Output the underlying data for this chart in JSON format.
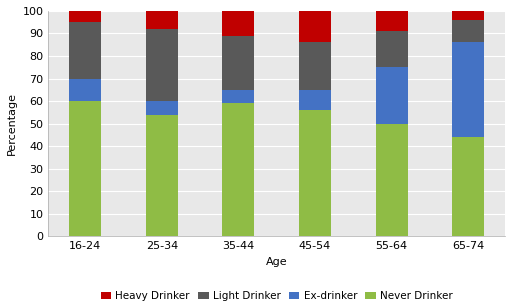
{
  "categories": [
    "16-24",
    "25-34",
    "35-44",
    "45-54",
    "55-64",
    "65-74"
  ],
  "never_drinker": [
    60,
    54,
    59,
    56,
    50,
    44
  ],
  "ex_drinker": [
    10,
    6,
    6,
    9,
    25,
    42
  ],
  "light_drinker": [
    25,
    32,
    24,
    21,
    16,
    10
  ],
  "heavy_drinker": [
    5,
    8,
    11,
    14,
    9,
    4
  ],
  "colors": {
    "never_drinker": "#8fbc45",
    "ex_drinker": "#4472c4",
    "light_drinker": "#595959",
    "heavy_drinker": "#c00000"
  },
  "legend_labels": [
    "Heavy Drinker",
    "Light Drinker",
    "Ex-drinker",
    "Never Drinker"
  ],
  "ylabel": "Percentage",
  "xlabel": "Age",
  "ylim": [
    0,
    100
  ],
  "yticks": [
    0,
    10,
    20,
    30,
    40,
    50,
    60,
    70,
    80,
    90,
    100
  ],
  "background_color": "#e8e8e8",
  "grid_color": "#ffffff",
  "bar_width": 0.42
}
